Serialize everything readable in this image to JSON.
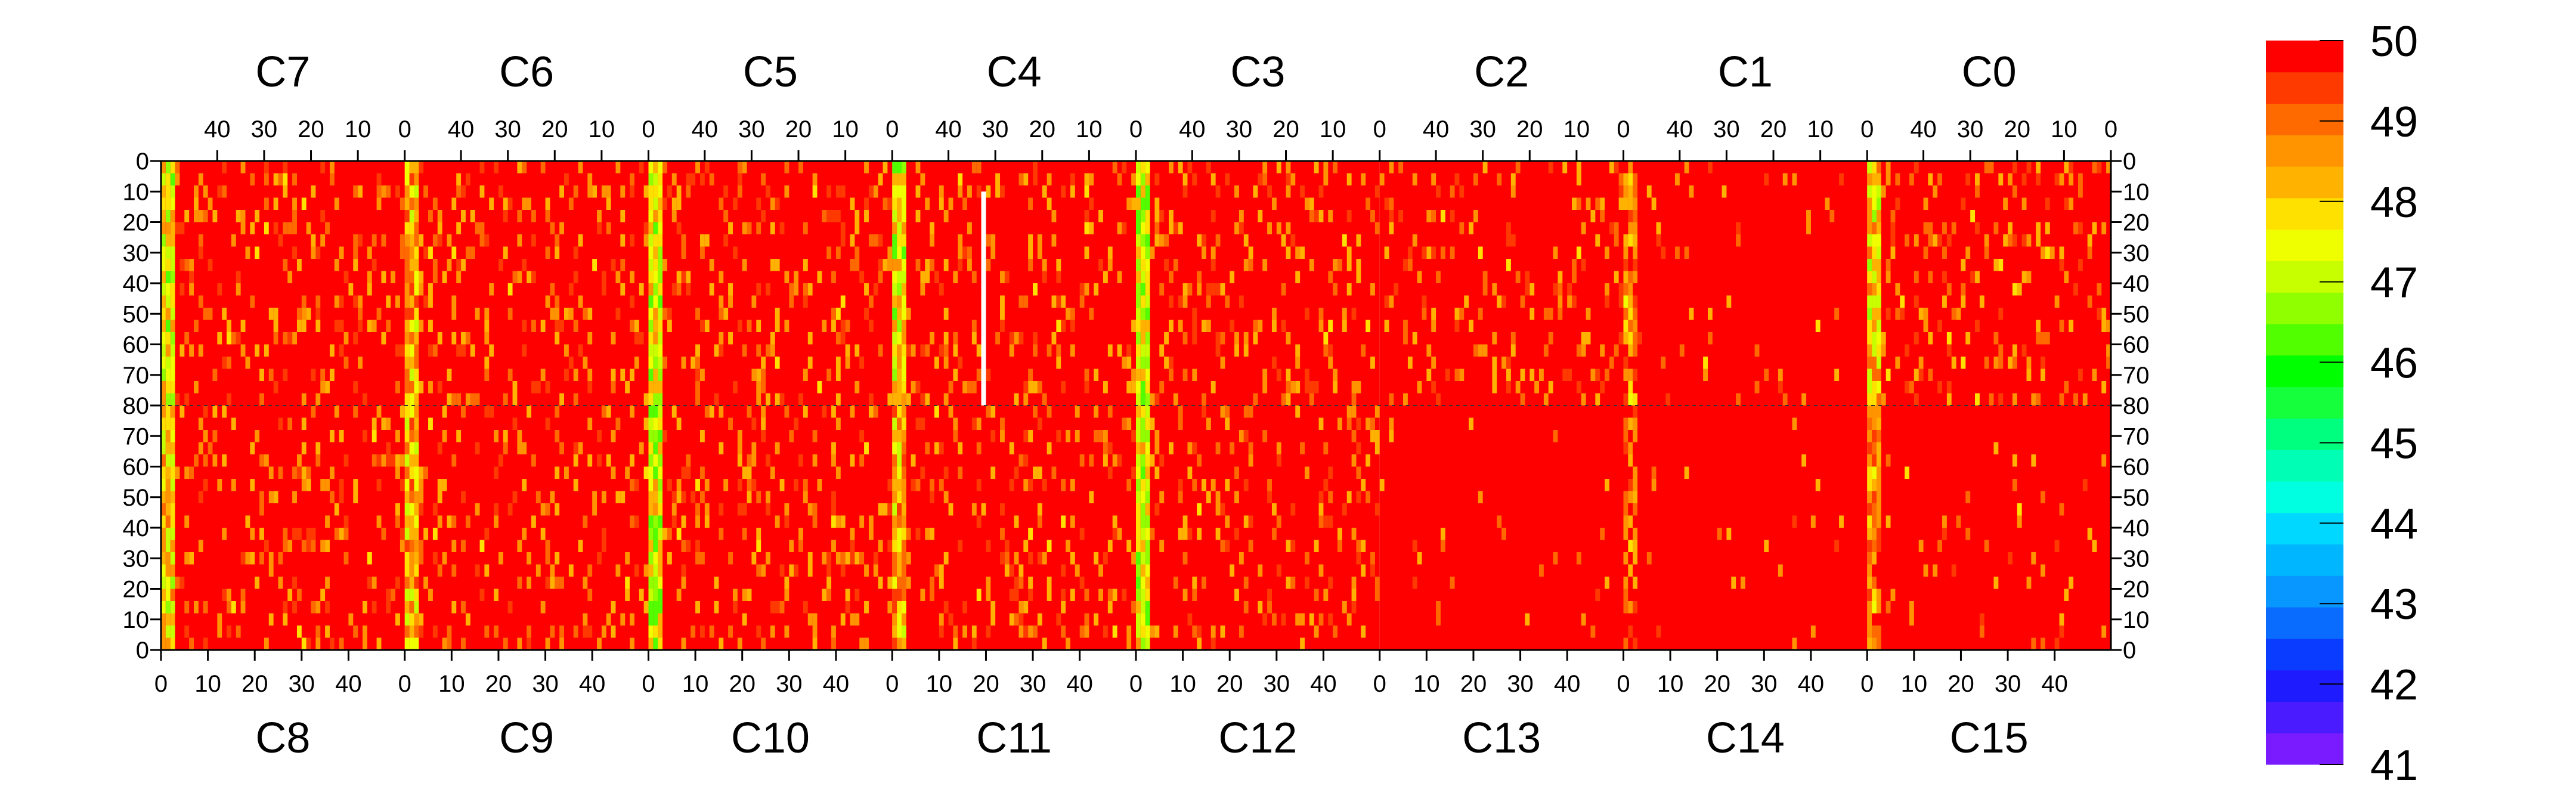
{
  "chart_data": {
    "type": "heatmap",
    "title": "",
    "top_chips": [
      "C7",
      "C6",
      "C5",
      "C4",
      "C3",
      "C2",
      "C1",
      "C0"
    ],
    "bottom_chips": [
      "C8",
      "C9",
      "C10",
      "C11",
      "C12",
      "C13",
      "C14",
      "C15"
    ],
    "top_x_ticks": [
      "40",
      "30",
      "20",
      "10",
      "0"
    ],
    "bottom_x_ticks": [
      "0",
      "10",
      "20",
      "30",
      "40"
    ],
    "y_ticks_top_half": [
      "0",
      "10",
      "20",
      "30",
      "40",
      "50",
      "60",
      "70",
      "80"
    ],
    "y_ticks_bottom_half": [
      "70",
      "60",
      "50",
      "40",
      "30",
      "20",
      "10",
      "0"
    ],
    "columns_per_chip": 52,
    "rows_per_half": 80,
    "z_range": [
      41,
      50
    ],
    "colorbar_ticks": [
      "50",
      "49",
      "48",
      "47",
      "46",
      "45",
      "44",
      "43",
      "42",
      "41"
    ],
    "colorbar_colors": [
      "#7a1bff",
      "#4a1bff",
      "#1e1bff",
      "#0a3cff",
      "#0a6cff",
      "#0896ff",
      "#00b7ff",
      "#00d8ff",
      "#00ffe0",
      "#00ffb4",
      "#00ff7e",
      "#16ff3c",
      "#00ff00",
      "#52ff00",
      "#90ff00",
      "#c8ff00",
      "#f0ff00",
      "#ffe100",
      "#ffb300",
      "#ff9400",
      "#ff6a00",
      "#ff3a00",
      "#ff0000"
    ],
    "chip_stats": {
      "C7": {
        "mean": 49.5,
        "edge_low_side": "right",
        "edge_mean": 47.6
      },
      "C6": {
        "mean": 49.4,
        "edge_low_side": "right",
        "edge_mean": 48.1
      },
      "C5": {
        "mean": 49.5,
        "edge_low_side": "right",
        "edge_mean": 47.4
      },
      "C4": {
        "mean": 49.4,
        "edge_low_side": "right",
        "edge_mean": 47.5
      },
      "C3": {
        "mean": 49.4,
        "edge_low_side": "right",
        "edge_mean": 47.3
      },
      "C2": {
        "mean": 49.6,
        "edge_low_side": "none",
        "edge_mean": 49.6
      },
      "C1": {
        "mean": 49.8,
        "edge_low_side": "right",
        "edge_mean": 48.8
      },
      "C0": {
        "mean": 49.6,
        "edge_low_side": "right",
        "edge_mean": 48.0
      },
      "C8": {
        "mean": 49.6,
        "edge_low_side": "right",
        "edge_mean": 47.9
      },
      "C9": {
        "mean": 49.5,
        "edge_low_side": "right",
        "edge_mean": 48.1
      },
      "C10": {
        "mean": 49.5,
        "edge_low_side": "right",
        "edge_mean": 47.3
      },
      "C11": {
        "mean": 49.6,
        "edge_low_side": "right",
        "edge_mean": 48.3
      },
      "C12": {
        "mean": 49.5,
        "edge_low_side": "right",
        "edge_mean": 47.4
      },
      "C13": {
        "mean": 49.9,
        "edge_low_side": "none",
        "edge_mean": 49.9
      },
      "C14": {
        "mean": 49.9,
        "edge_low_side": "right",
        "edge_mean": 49.2
      },
      "C15": {
        "mean": 49.8,
        "edge_low_side": "right",
        "edge_mean": 48.7
      }
    },
    "dead_column": {
      "chip": "C4",
      "column": 32,
      "rows": [
        10,
        80
      ],
      "value": null
    }
  }
}
